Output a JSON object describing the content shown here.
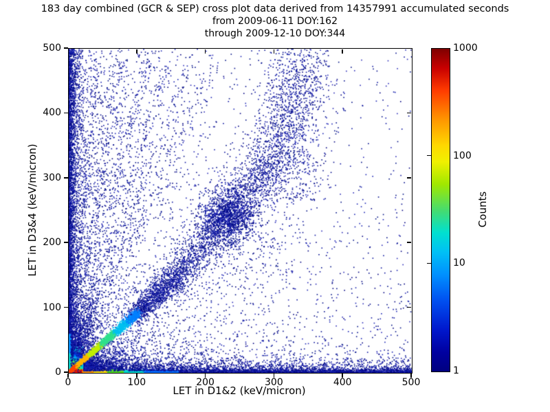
{
  "chart_data": {
    "type": "heatmap",
    "title": "183 day combined (GCR & SEP) cross plot data derived from 14357991 accumulated seconds",
    "subtitle1": "from 2009-06-11 DOY:162",
    "subtitle2": "through 2009-12-10 DOY:344",
    "period_days": 183,
    "accumulated_seconds": 14357991,
    "start_date": "2009-06-11",
    "start_doy": 162,
    "end_date": "2009-12-10",
    "end_doy": 344,
    "xlabel": "LET in D1&2 (keV/micron)",
    "ylabel": "LET in D3&4 (keV/micron)",
    "xlim": [
      0,
      500
    ],
    "ylim": [
      0,
      500
    ],
    "xticks": [
      0,
      100,
      200,
      300,
      400,
      500
    ],
    "yticks": [
      0,
      100,
      200,
      300,
      400,
      500
    ],
    "grid": false,
    "background": "#ffffff",
    "colorbar": {
      "label": "Counts",
      "scale": "log",
      "min": 1,
      "max": 1000,
      "ticks": [
        1,
        10,
        100,
        1000
      ],
      "tick_labels": [
        "1",
        "10",
        "100",
        "1000"
      ],
      "colormap": "jet",
      "gradient_top_to_bottom": [
        [
          0,
          "#7f0000"
        ],
        [
          0.06,
          "#c80000"
        ],
        [
          0.13,
          "#ff3c00"
        ],
        [
          0.22,
          "#ff9600"
        ],
        [
          0.3,
          "#ffd800"
        ],
        [
          0.35,
          "#f0f000"
        ],
        [
          0.42,
          "#a0e800"
        ],
        [
          0.5,
          "#46dc6e"
        ],
        [
          0.57,
          "#00e0d0"
        ],
        [
          0.63,
          "#00c0f5"
        ],
        [
          0.7,
          "#0090ff"
        ],
        [
          0.78,
          "#0050f0"
        ],
        [
          0.87,
          "#0018cd"
        ],
        [
          0.94,
          "#0000a0"
        ],
        [
          1,
          "#000080"
        ]
      ]
    },
    "point_colors": [
      "#000c8c",
      "#0a12a0",
      "#011086",
      "#1822b4",
      "#000080",
      "#2a2ab8"
    ],
    "features": [
      {
        "type": "scatter",
        "name": "background-scatter",
        "n": 3000,
        "size": 1.6,
        "color": "navy",
        "x": {
          "dist": "mix",
          "p": 0.55,
          "a": {
            "dist": "exp",
            "scale": 95
          },
          "b": {
            "dist": "uniform",
            "min": 0,
            "max": 500
          }
        },
        "y": {
          "dist": "mix",
          "p": 0.55,
          "a": {
            "dist": "exp",
            "scale": 120
          },
          "b": {
            "dist": "uniform",
            "min": 0,
            "max": 500
          }
        }
      },
      {
        "type": "scatter",
        "name": "upper-left-haze",
        "n": 600,
        "size": 1.6,
        "color": "navy",
        "x": {
          "dist": "exp",
          "scale": 55
        },
        "y": {
          "dist": "uniform",
          "min": 250,
          "max": 500
        }
      },
      {
        "type": "scatter",
        "name": "origin-burst",
        "n": 1300,
        "size": 1.6,
        "color": "navy",
        "x": {
          "dist": "exp",
          "scale": 45
        },
        "y": {
          "dist": "exp",
          "scale": 40
        }
      },
      {
        "type": "scatter",
        "name": "core-halo",
        "n": 1500,
        "size": 1.6,
        "color": "navy",
        "x": {
          "dist": "exp",
          "scale": 25
        },
        "y": {
          "dist": "exp",
          "scale": 25
        }
      },
      {
        "type": "scatter",
        "name": "upper-mid-cloud",
        "n": 620,
        "size": 1.6,
        "color": "navy",
        "x": {
          "dist": "gauss",
          "mu": 330,
          "sigma": 26
        },
        "y": {
          "dist": "uniform",
          "min": 265,
          "max": 500
        }
      },
      {
        "type": "scatter",
        "name": "mid-cloud",
        "n": 450,
        "size": 1.6,
        "color": "navy",
        "x": {
          "dist": "gauss",
          "mu": 250,
          "sigma": 55
        },
        "y": {
          "dist": "gauss",
          "mu": 205,
          "sigma": 65
        }
      },
      {
        "type": "ray",
        "name": "fan-ray-1",
        "n": 240,
        "x0": 0,
        "y0": 0,
        "x1": 28,
        "y1": 320,
        "w0": 1.5,
        "w1": 4,
        "tmax": 1.5,
        "bias": 1.2,
        "colors": [
          [
            0.05,
            "#38d08c"
          ],
          [
            0.12,
            "#00b4e4"
          ],
          [
            9,
            "navy"
          ]
        ]
      },
      {
        "type": "ray",
        "name": "fan-ray-2",
        "n": 280,
        "x0": 0,
        "y0": 0,
        "x1": 52,
        "y1": 320,
        "w0": 1.5,
        "w1": 4.5,
        "tmax": 1.5,
        "bias": 1.2,
        "colors": [
          [
            0.05,
            "#38d08c"
          ],
          [
            0.12,
            "#00b4e4"
          ],
          [
            9,
            "navy"
          ]
        ]
      },
      {
        "type": "ray",
        "name": "fan-ray-3",
        "n": 300,
        "x0": 0,
        "y0": 0,
        "x1": 76,
        "y1": 320,
        "w0": 1.5,
        "w1": 5,
        "tmax": 1.5,
        "bias": 1.2,
        "colors": [
          [
            0.05,
            "#38d08c"
          ],
          [
            0.12,
            "#00b4e4"
          ],
          [
            9,
            "navy"
          ]
        ]
      },
      {
        "type": "ray",
        "name": "fan-ray-4",
        "n": 290,
        "x0": 0,
        "y0": 0,
        "x1": 97,
        "y1": 320,
        "w0": 1.5,
        "w1": 5.5,
        "tmax": 1.5,
        "bias": 1.2,
        "colors": [
          [
            0.05,
            "#38d08c"
          ],
          [
            0.12,
            "#00b4e4"
          ],
          [
            9,
            "navy"
          ]
        ]
      },
      {
        "type": "ray",
        "name": "fan-ray-5",
        "n": 260,
        "x0": 0,
        "y0": 0,
        "x1": 119,
        "y1": 320,
        "w0": 2,
        "w1": 6,
        "tmax": 1.5,
        "bias": 1.2,
        "colors": [
          [
            0.05,
            "#38d08c"
          ],
          [
            0.12,
            "#00b4e4"
          ],
          [
            9,
            "navy"
          ]
        ]
      },
      {
        "type": "ray",
        "name": "fan-ray-6",
        "n": 230,
        "x0": 0,
        "y0": 0,
        "x1": 142,
        "y1": 320,
        "w0": 2,
        "w1": 7,
        "tmax": 1.5,
        "bias": 1.2,
        "colors": [
          [
            0.05,
            "#38d08c"
          ],
          [
            0.12,
            "#00b4e4"
          ],
          [
            9,
            "navy"
          ]
        ]
      },
      {
        "type": "ray",
        "name": "ridge-extension-1",
        "n": 1200,
        "x0": 96,
        "y0": 88,
        "x1": 162,
        "y1": 152,
        "w0": 7,
        "w1": 12,
        "tmax": 1,
        "bias": 1,
        "colors": [
          [
            9,
            "navy"
          ]
        ]
      },
      {
        "type": "ray",
        "name": "ridge-extension-2",
        "n": 1700,
        "x0": 162,
        "y0": 152,
        "x1": 302,
        "y1": 332,
        "w0": 13,
        "w1": 20,
        "tmax": 1,
        "bias": 1,
        "colors": [
          [
            9,
            "navy"
          ]
        ]
      },
      {
        "type": "cluster",
        "name": "diagonal-dense-blob",
        "n": 950,
        "cx": 232,
        "cy": 240,
        "sx": 20,
        "sy": 21,
        "color": "navy",
        "size": 1.7
      },
      {
        "type": "ray",
        "name": "upper-arm",
        "n": 750,
        "x0": 300,
        "y0": 330,
        "x1": 345,
        "y1": 478,
        "w0": 20,
        "w1": 26,
        "tmax": 1,
        "bias": 1,
        "colors": [
          [
            9,
            "navy"
          ]
        ]
      },
      {
        "type": "core",
        "name": "origin-hot-core",
        "cx": 0,
        "cy": 0,
        "r": 36,
        "stops": [
          [
            0,
            "#7f0000"
          ],
          [
            0.09,
            "#dd1000"
          ],
          [
            0.18,
            "#ff7800"
          ],
          [
            0.3,
            "#ffe000"
          ],
          [
            0.44,
            "#8ae800"
          ],
          [
            0.57,
            "#00e0c4"
          ],
          [
            0.7,
            "#0096ff"
          ],
          [
            0.82,
            "#0028d8"
          ],
          [
            1,
            "rgba(0,10,140,0)"
          ]
        ]
      },
      {
        "type": "band-bottom",
        "name": "bottom-band",
        "n_solid": 5000,
        "n_speckle": 2400,
        "thickness": 2.0,
        "speckle_scale": 7,
        "x_mix_p": 0.45,
        "x_exp_scale": 45,
        "thresholds": [
          [
            20,
            "#e01800"
          ],
          [
            36,
            "#ff9800"
          ],
          [
            56,
            "#ffe000"
          ],
          [
            80,
            "#55dc28"
          ],
          [
            110,
            "#00d8d0"
          ],
          [
            160,
            "#0070ff"
          ],
          [
            100000,
            "navy"
          ]
        ]
      },
      {
        "type": "band-left",
        "name": "left-band",
        "n_solid": 2400,
        "n_speckle": 2000,
        "width": 1.6,
        "speckle_scale": 6,
        "thresholds": [
          [
            30,
            "#00d0c8"
          ],
          [
            60,
            "#0090ff"
          ],
          [
            100000,
            "navy"
          ]
        ]
      },
      {
        "type": "ray",
        "name": "main-ridge",
        "n": 2300,
        "x0": 1,
        "y0": 1,
        "x1": 100,
        "y1": 92,
        "w0": 1.2,
        "w1": 3.5,
        "tmax": 1,
        "bias": 1.1,
        "size": 1.7,
        "colors": [
          [
            0.1,
            "#ff4400"
          ],
          [
            0.28,
            "#ffb400"
          ],
          [
            0.46,
            "#c0ee00"
          ],
          [
            0.66,
            "#2fe08c"
          ],
          [
            0.85,
            "#00c0f0"
          ],
          [
            9,
            "#0080ff"
          ]
        ]
      }
    ]
  }
}
